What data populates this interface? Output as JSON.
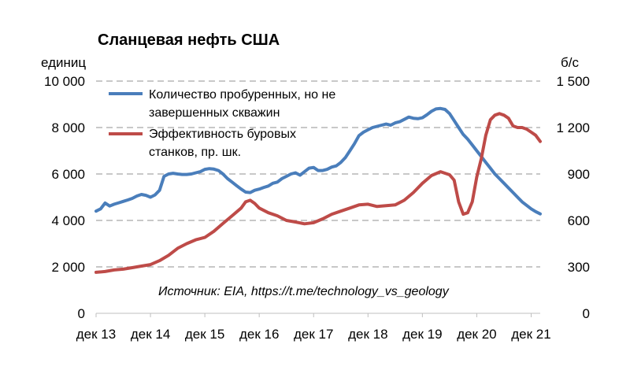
{
  "chart_data": {
    "type": "line",
    "title": "Сланцевая нефть США",
    "left_axis": {
      "unit": "единиц",
      "ylim": [
        0,
        10000
      ],
      "ticks": [
        0,
        2000,
        4000,
        6000,
        8000,
        10000
      ],
      "tick_labels": [
        "0",
        "2 000",
        "4 000",
        "6 000",
        "8 000",
        "10 000"
      ]
    },
    "right_axis": {
      "unit": "б/с",
      "ylim": [
        0,
        1500
      ],
      "ticks": [
        0,
        300,
        600,
        900,
        1200,
        1500
      ],
      "tick_labels": [
        "0",
        "300",
        "600",
        "900",
        "1 200",
        "1 500"
      ]
    },
    "x_axis": {
      "start": "2013-12",
      "end": "2022-02",
      "tick_labels": [
        "дек 13",
        "дек 14",
        "дек 15",
        "дек 16",
        "дек 17",
        "дек 18",
        "дек 19",
        "дек 20",
        "дек 21"
      ]
    },
    "grid": true,
    "legend_placement": "top-left",
    "annotation": "Источник: EIA, https://t.me/technology_vs_geology",
    "series": [
      {
        "name": "Количество пробуренных, но не завершенных скважин",
        "legend_lines": [
          "Количество пробуренных, но не",
          "завершенных скважин"
        ],
        "axis": "left",
        "color": "#4a7ebb",
        "points": [
          [
            "2013-12",
            4400
          ],
          [
            "2014-01",
            4500
          ],
          [
            "2014-02",
            4750
          ],
          [
            "2014-03",
            4620
          ],
          [
            "2014-04",
            4700
          ],
          [
            "2014-05",
            4760
          ],
          [
            "2014-06",
            4820
          ],
          [
            "2014-07",
            4880
          ],
          [
            "2014-08",
            4950
          ],
          [
            "2014-09",
            5050
          ],
          [
            "2014-10",
            5120
          ],
          [
            "2014-11",
            5080
          ],
          [
            "2014-12",
            5000
          ],
          [
            "2015-01",
            5100
          ],
          [
            "2015-02",
            5300
          ],
          [
            "2015-03",
            5900
          ],
          [
            "2015-04",
            6000
          ],
          [
            "2015-05",
            6030
          ],
          [
            "2015-06",
            6000
          ],
          [
            "2015-07",
            5980
          ],
          [
            "2015-08",
            5980
          ],
          [
            "2015-09",
            6000
          ],
          [
            "2015-10",
            6050
          ],
          [
            "2015-11",
            6100
          ],
          [
            "2015-12",
            6200
          ],
          [
            "2016-01",
            6230
          ],
          [
            "2016-02",
            6210
          ],
          [
            "2016-03",
            6150
          ],
          [
            "2016-04",
            6000
          ],
          [
            "2016-05",
            5800
          ],
          [
            "2016-06",
            5650
          ],
          [
            "2016-07",
            5500
          ],
          [
            "2016-08",
            5350
          ],
          [
            "2016-09",
            5220
          ],
          [
            "2016-10",
            5200
          ],
          [
            "2016-11",
            5300
          ],
          [
            "2016-12",
            5350
          ],
          [
            "2017-01",
            5420
          ],
          [
            "2017-02",
            5480
          ],
          [
            "2017-03",
            5600
          ],
          [
            "2017-04",
            5650
          ],
          [
            "2017-05",
            5800
          ],
          [
            "2017-06",
            5900
          ],
          [
            "2017-07",
            6000
          ],
          [
            "2017-08",
            6050
          ],
          [
            "2017-09",
            5950
          ],
          [
            "2017-10",
            6100
          ],
          [
            "2017-11",
            6250
          ],
          [
            "2017-12",
            6280
          ],
          [
            "2018-01",
            6150
          ],
          [
            "2018-02",
            6150
          ],
          [
            "2018-03",
            6200
          ],
          [
            "2018-04",
            6300
          ],
          [
            "2018-05",
            6350
          ],
          [
            "2018-06",
            6500
          ],
          [
            "2018-07",
            6700
          ],
          [
            "2018-08",
            7000
          ],
          [
            "2018-09",
            7300
          ],
          [
            "2018-10",
            7650
          ],
          [
            "2018-11",
            7800
          ],
          [
            "2018-12",
            7900
          ],
          [
            "2019-01",
            8000
          ],
          [
            "2019-02",
            8050
          ],
          [
            "2019-03",
            8100
          ],
          [
            "2019-04",
            8150
          ],
          [
            "2019-05",
            8100
          ],
          [
            "2019-06",
            8200
          ],
          [
            "2019-07",
            8250
          ],
          [
            "2019-08",
            8350
          ],
          [
            "2019-09",
            8450
          ],
          [
            "2019-10",
            8400
          ],
          [
            "2019-11",
            8380
          ],
          [
            "2019-12",
            8420
          ],
          [
            "2020-01",
            8550
          ],
          [
            "2020-02",
            8700
          ],
          [
            "2020-03",
            8800
          ],
          [
            "2020-04",
            8820
          ],
          [
            "2020-05",
            8780
          ],
          [
            "2020-06",
            8600
          ],
          [
            "2020-07",
            8300
          ],
          [
            "2020-08",
            8000
          ],
          [
            "2020-09",
            7700
          ],
          [
            "2020-10",
            7500
          ],
          [
            "2020-11",
            7250
          ],
          [
            "2020-12",
            7000
          ],
          [
            "2021-01",
            6750
          ],
          [
            "2021-02",
            6500
          ],
          [
            "2021-03",
            6250
          ],
          [
            "2021-04",
            6000
          ],
          [
            "2021-05",
            5800
          ],
          [
            "2021-06",
            5600
          ],
          [
            "2021-07",
            5400
          ],
          [
            "2021-08",
            5200
          ],
          [
            "2021-09",
            5000
          ],
          [
            "2021-10",
            4800
          ],
          [
            "2021-11",
            4650
          ],
          [
            "2021-12",
            4500
          ],
          [
            "2022-01",
            4380
          ],
          [
            "2022-02",
            4280
          ]
        ]
      },
      {
        "name": "Эффективность буровых станков, пр. шк.",
        "legend_lines": [
          "Эффективность буровых",
          "станков, пр. шк."
        ],
        "axis": "right",
        "color": "#be4b48",
        "points": [
          [
            "2013-12",
            265
          ],
          [
            "2014-02",
            270
          ],
          [
            "2014-04",
            280
          ],
          [
            "2014-06",
            285
          ],
          [
            "2014-08",
            295
          ],
          [
            "2014-10",
            305
          ],
          [
            "2014-12",
            315
          ],
          [
            "2015-02",
            340
          ],
          [
            "2015-04",
            375
          ],
          [
            "2015-06",
            420
          ],
          [
            "2015-08",
            450
          ],
          [
            "2015-10",
            475
          ],
          [
            "2015-12",
            490
          ],
          [
            "2016-02",
            530
          ],
          [
            "2016-04",
            580
          ],
          [
            "2016-06",
            630
          ],
          [
            "2016-08",
            680
          ],
          [
            "2016-09",
            720
          ],
          [
            "2016-10",
            730
          ],
          [
            "2016-11",
            710
          ],
          [
            "2016-12",
            680
          ],
          [
            "2017-02",
            650
          ],
          [
            "2017-04",
            630
          ],
          [
            "2017-06",
            600
          ],
          [
            "2017-08",
            590
          ],
          [
            "2017-10",
            578
          ],
          [
            "2017-12",
            585
          ],
          [
            "2018-02",
            610
          ],
          [
            "2018-04",
            640
          ],
          [
            "2018-06",
            660
          ],
          [
            "2018-08",
            680
          ],
          [
            "2018-10",
            700
          ],
          [
            "2018-12",
            705
          ],
          [
            "2019-02",
            690
          ],
          [
            "2019-04",
            695
          ],
          [
            "2019-06",
            700
          ],
          [
            "2019-08",
            730
          ],
          [
            "2019-10",
            780
          ],
          [
            "2019-12",
            840
          ],
          [
            "2020-02",
            890
          ],
          [
            "2020-04",
            915
          ],
          [
            "2020-06",
            895
          ],
          [
            "2020-07",
            860
          ],
          [
            "2020-08",
            720
          ],
          [
            "2020-09",
            640
          ],
          [
            "2020-10",
            650
          ],
          [
            "2020-11",
            720
          ],
          [
            "2020-12",
            880
          ],
          [
            "2021-01",
            1000
          ],
          [
            "2021-02",
            1150
          ],
          [
            "2021-03",
            1250
          ],
          [
            "2021-04",
            1280
          ],
          [
            "2021-05",
            1290
          ],
          [
            "2021-06",
            1280
          ],
          [
            "2021-07",
            1260
          ],
          [
            "2021-08",
            1210
          ],
          [
            "2021-09",
            1200
          ],
          [
            "2021-10",
            1200
          ],
          [
            "2021-11",
            1190
          ],
          [
            "2021-12",
            1170
          ],
          [
            "2022-01",
            1150
          ],
          [
            "2022-02",
            1110
          ]
        ]
      }
    ]
  }
}
